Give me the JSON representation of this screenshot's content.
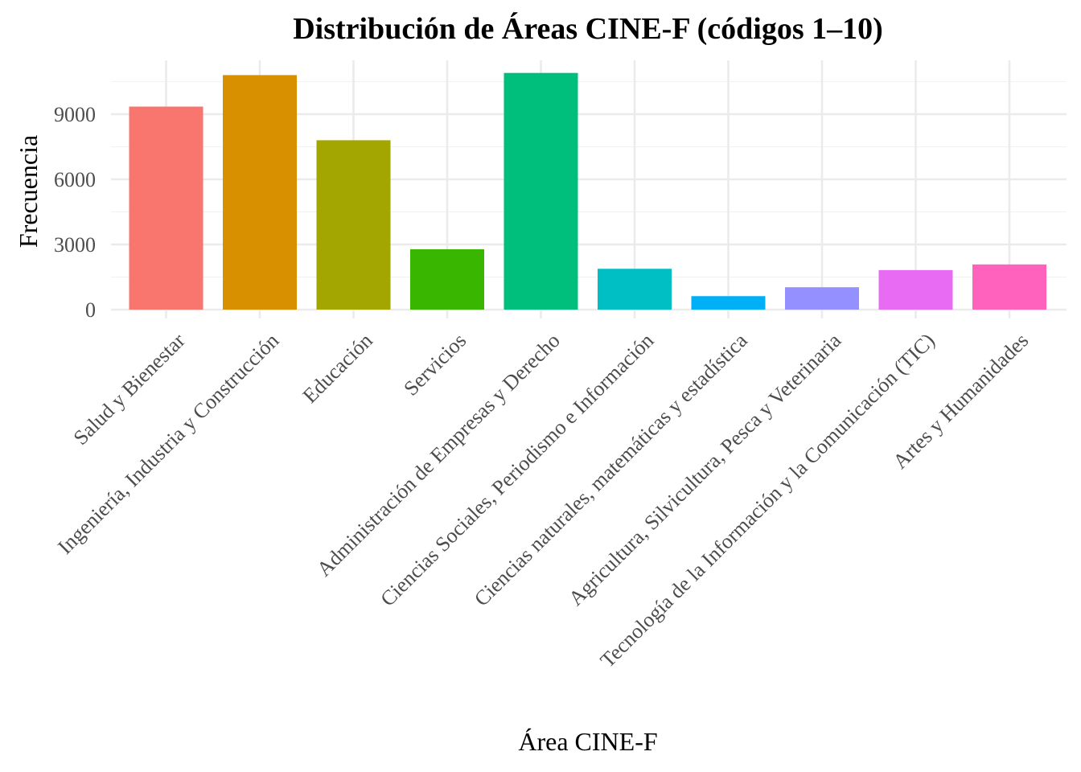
{
  "chart_data": {
    "type": "bar",
    "title": "Distribución de Áreas CINE-F (códigos 1–10)",
    "xlabel": "Área CINE-F",
    "ylabel": "Frecuencia",
    "ylim": [
      0,
      10900
    ],
    "yticks": [
      0,
      3000,
      6000,
      9000
    ],
    "grid": true,
    "legend": "none",
    "categories": [
      "Salud y Bienestar",
      "Ingeniería, Industria y Construcción",
      "Educación",
      "Servicios",
      "Administración de Empresas y Derecho",
      "Ciencias Sociales, Periodismo e Información",
      "Ciencias naturales, matemáticas y estadística",
      "Agricultura, Silvicultura, Pesca y Veterinaria",
      "Tecnología de la Información y la Comunicación (TIC)",
      "Artes y Humanidades"
    ],
    "values": [
      9350,
      10800,
      7800,
      2780,
      10900,
      1880,
      620,
      1030,
      1820,
      2080
    ],
    "colors": [
      "#F8766D",
      "#D89000",
      "#A3A500",
      "#39B600",
      "#00BF7D",
      "#00BFC4",
      "#00B0F6",
      "#9590FF",
      "#E76BF3",
      "#FF62BC"
    ]
  }
}
